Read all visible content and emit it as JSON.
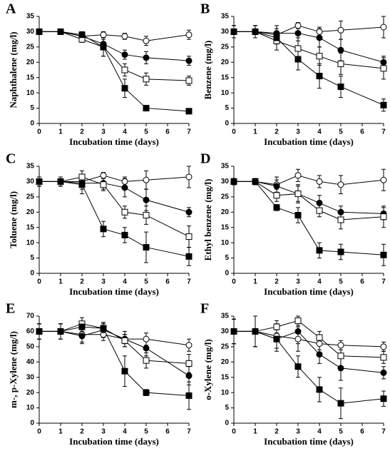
{
  "chart_data": [
    {
      "type": "line",
      "panel": "A",
      "xlabel": "Incubation time (days)",
      "ylabel": "Naphthalene (mg/l)",
      "x": [
        0,
        1,
        2,
        3,
        4,
        5,
        7
      ],
      "xlim": [
        0,
        7
      ],
      "xticks": [
        0,
        1,
        2,
        3,
        4,
        5,
        6,
        7
      ],
      "ylim": [
        0,
        35
      ],
      "yticks": [
        0,
        5,
        10,
        15,
        20,
        25,
        30,
        35
      ],
      "series": [
        {
          "marker": "circle",
          "color": "#000000",
          "fill": "#ffffff",
          "values": [
            30,
            30,
            28.5,
            29,
            28.5,
            27,
            29
          ],
          "errors": [
            0.5,
            0.5,
            1,
            1,
            1,
            1.5,
            1.5
          ]
        },
        {
          "marker": "circle",
          "color": "#000000",
          "fill": "#000000",
          "values": [
            30,
            30,
            28.5,
            26,
            22.5,
            21.5,
            20.5
          ],
          "errors": [
            0.5,
            0.5,
            1,
            1.5,
            1.5,
            2,
            1.5
          ]
        },
        {
          "marker": "square",
          "color": "#000000",
          "fill": "#ffffff",
          "values": [
            30,
            30,
            27.5,
            25,
            17.5,
            14.5,
            14
          ],
          "errors": [
            0.5,
            0.5,
            1,
            3,
            2,
            2,
            1.5
          ]
        },
        {
          "marker": "square",
          "color": "#000000",
          "fill": "#000000",
          "values": [
            30,
            30,
            29,
            25,
            11.5,
            5,
            4
          ],
          "errors": [
            0.5,
            0.5,
            1,
            3,
            3,
            0.8,
            0.5
          ]
        }
      ]
    },
    {
      "type": "line",
      "panel": "B",
      "xlabel": "Incubation time (days)",
      "ylabel": "Benzene (mg/l)",
      "x": [
        0,
        1,
        2,
        3,
        4,
        5,
        7
      ],
      "xlim": [
        0,
        7
      ],
      "xticks": [
        0,
        1,
        2,
        3,
        4,
        5,
        6,
        7
      ],
      "ylim": [
        0,
        35
      ],
      "yticks": [
        0,
        5,
        10,
        15,
        20,
        25,
        30,
        35
      ],
      "series": [
        {
          "marker": "circle",
          "color": "#000000",
          "fill": "#ffffff",
          "values": [
            30,
            30,
            29,
            32,
            30,
            30.5,
            31.5
          ],
          "errors": [
            2,
            2,
            2,
            1,
            1.5,
            3,
            3.5
          ]
        },
        {
          "marker": "circle",
          "color": "#000000",
          "fill": "#000000",
          "values": [
            30,
            30,
            29.5,
            29.5,
            28,
            24,
            20
          ],
          "errors": [
            2,
            2,
            2.5,
            2.5,
            3,
            3.5,
            2
          ]
        },
        {
          "marker": "square",
          "color": "#000000",
          "fill": "#ffffff",
          "values": [
            30,
            30,
            27,
            24.5,
            22,
            19.5,
            18
          ],
          "errors": [
            2,
            2,
            3,
            3.5,
            3,
            3.5,
            3.5
          ]
        },
        {
          "marker": "square",
          "color": "#000000",
          "fill": "#000000",
          "values": [
            30,
            30,
            28,
            21,
            15.5,
            12,
            6
          ],
          "errors": [
            2,
            2,
            2,
            3.5,
            4,
            3.5,
            2
          ]
        }
      ]
    },
    {
      "type": "line",
      "panel": "C",
      "xlabel": "Incubation time (days)",
      "ylabel": "Toluene (mg/l)",
      "x": [
        0,
        1,
        2,
        3,
        4,
        5,
        7
      ],
      "xlim": [
        0,
        7
      ],
      "xticks": [
        0,
        1,
        2,
        3,
        4,
        5,
        6,
        7
      ],
      "ylim": [
        0,
        35
      ],
      "yticks": [
        0,
        5,
        10,
        15,
        20,
        25,
        30,
        35
      ],
      "series": [
        {
          "marker": "circle",
          "color": "#000000",
          "fill": "#ffffff",
          "values": [
            30,
            30,
            30,
            32,
            30,
            30.5,
            31.5
          ],
          "errors": [
            1.5,
            1.5,
            1.5,
            1,
            1.5,
            3,
            3.5
          ]
        },
        {
          "marker": "circle",
          "color": "#000000",
          "fill": "#000000",
          "values": [
            30,
            30,
            29.5,
            29.5,
            28,
            24,
            20
          ],
          "errors": [
            1.5,
            1.5,
            2,
            2,
            3,
            3.5,
            1.5
          ]
        },
        {
          "marker": "square",
          "color": "#000000",
          "fill": "#ffffff",
          "values": [
            30,
            30,
            31.5,
            29,
            20,
            19,
            12
          ],
          "errors": [
            1.5,
            1.5,
            2,
            2,
            2,
            3,
            3.5
          ]
        },
        {
          "marker": "square",
          "color": "#000000",
          "fill": "#000000",
          "values": [
            30,
            30,
            29,
            14.5,
            12.5,
            8.5,
            5.5
          ],
          "errors": [
            1.5,
            1.5,
            3,
            2.5,
            2.5,
            5,
            3
          ]
        }
      ]
    },
    {
      "type": "line",
      "panel": "D",
      "xlabel": "Incubation time (days)",
      "ylabel": "Ethyl benzene (mg/l)",
      "x": [
        0,
        1,
        2,
        3,
        4,
        5,
        7
      ],
      "xlim": [
        0,
        7
      ],
      "xticks": [
        0,
        1,
        2,
        3,
        4,
        5,
        6,
        7
      ],
      "ylim": [
        0,
        35
      ],
      "yticks": [
        0,
        5,
        10,
        15,
        20,
        25,
        30,
        35
      ],
      "series": [
        {
          "marker": "circle",
          "color": "#000000",
          "fill": "#ffffff",
          "values": [
            30,
            30,
            29,
            32,
            30,
            29,
            30.5
          ],
          "errors": [
            1,
            1,
            2.5,
            2,
            2,
            3,
            3.5
          ]
        },
        {
          "marker": "circle",
          "color": "#000000",
          "fill": "#000000",
          "values": [
            30,
            30,
            28.5,
            26,
            23,
            20,
            19.5
          ],
          "errors": [
            1,
            1,
            2,
            3,
            2.5,
            2,
            2
          ]
        },
        {
          "marker": "square",
          "color": "#000000",
          "fill": "#ffffff",
          "values": [
            30,
            30,
            25.5,
            26,
            20.5,
            17.5,
            18.5
          ],
          "errors": [
            1,
            1,
            2,
            2.5,
            2,
            3,
            3.5
          ]
        },
        {
          "marker": "square",
          "color": "#000000",
          "fill": "#000000",
          "values": [
            30,
            30,
            21.5,
            19,
            7.5,
            7,
            6
          ],
          "errors": [
            1,
            1,
            1,
            2.5,
            2.5,
            2.5,
            3.5
          ]
        }
      ]
    },
    {
      "type": "line",
      "panel": "E",
      "xlabel": "Incubation time (days)",
      "ylabel": "m-, p-Xylene (mg/l)",
      "x": [
        0,
        1,
        2,
        3,
        4,
        5,
        7
      ],
      "xlim": [
        0,
        7
      ],
      "xticks": [
        0,
        1,
        2,
        3,
        4,
        5,
        6,
        7
      ],
      "ylim": [
        0,
        70
      ],
      "yticks": [
        0,
        10,
        20,
        30,
        40,
        50,
        60,
        70
      ],
      "series": [
        {
          "marker": "circle",
          "color": "#000000",
          "fill": "#ffffff",
          "values": [
            60,
            60,
            58,
            58,
            55,
            55,
            51
          ],
          "errors": [
            5,
            5,
            5,
            4,
            3,
            4,
            4
          ]
        },
        {
          "marker": "circle",
          "color": "#000000",
          "fill": "#000000",
          "values": [
            60,
            60,
            57,
            61,
            55,
            49,
            31
          ],
          "errors": [
            5,
            5,
            5,
            5,
            5,
            5,
            6
          ]
        },
        {
          "marker": "square",
          "color": "#000000",
          "fill": "#ffffff",
          "values": [
            60,
            60,
            65,
            62,
            54,
            41,
            39
          ],
          "errors": [
            5,
            5,
            4,
            3,
            4,
            5,
            6
          ]
        },
        {
          "marker": "square",
          "color": "#000000",
          "fill": "#000000",
          "values": [
            60,
            60,
            63,
            62,
            34,
            20,
            18
          ],
          "errors": [
            5,
            5,
            3,
            3,
            10,
            2,
            9
          ]
        }
      ]
    },
    {
      "type": "line",
      "panel": "F",
      "xlabel": "Incubation time (days)",
      "ylabel": "o-Xylene (mg/l)",
      "x": [
        0,
        1,
        2,
        3,
        4,
        5,
        7
      ],
      "xlim": [
        0,
        7
      ],
      "xticks": [
        0,
        1,
        2,
        3,
        4,
        5,
        6,
        7
      ],
      "ylim": [
        0,
        35
      ],
      "yticks": [
        0,
        5,
        10,
        15,
        20,
        25,
        30,
        35
      ],
      "series": [
        {
          "marker": "circle",
          "color": "#000000",
          "fill": "#ffffff",
          "values": [
            30,
            30,
            28.5,
            27.5,
            26,
            25.5,
            25
          ],
          "errors": [
            4,
            5,
            4,
            4,
            2,
            1.5,
            1.5
          ]
        },
        {
          "marker": "circle",
          "color": "#000000",
          "fill": "#000000",
          "values": [
            30,
            30,
            27.5,
            30,
            22.5,
            18,
            16.5
          ],
          "errors": [
            4,
            5,
            4,
            4,
            3,
            4,
            2
          ]
        },
        {
          "marker": "square",
          "color": "#000000",
          "fill": "#ffffff",
          "values": [
            30,
            30,
            31.5,
            33.5,
            28,
            22,
            21.5
          ],
          "errors": [
            4,
            5,
            2,
            1.5,
            2,
            3.5,
            2
          ]
        },
        {
          "marker": "square",
          "color": "#000000",
          "fill": "#000000",
          "values": [
            30,
            30,
            27.5,
            18.5,
            11,
            6.5,
            8
          ],
          "errors": [
            4,
            5,
            3,
            3.5,
            4,
            5,
            2.5
          ]
        }
      ]
    }
  ]
}
